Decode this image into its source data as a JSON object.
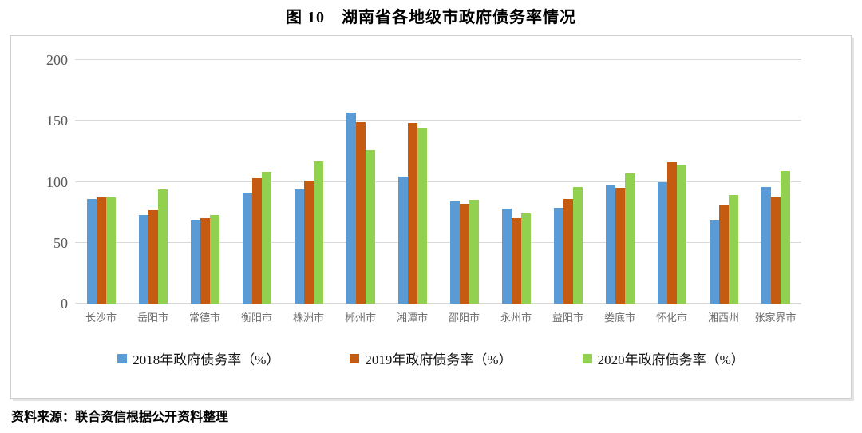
{
  "title": "图 10　湖南省各地级市政府债务率情况",
  "source_note": "资料来源：联合资信根据公开资料整理",
  "colors": {
    "series_2018": "#5B9BD5",
    "series_2019": "#C55A11",
    "series_2020": "#92D050",
    "gridline": "#d9d9d9",
    "frame_border": "#cfcfcf",
    "y_tick_label": "#595959",
    "x_tick_label": "#6f6f6f"
  },
  "chart_data": {
    "type": "bar",
    "title": "图 10　湖南省各地级市政府债务率情况",
    "categories": [
      "长沙市",
      "岳阳市",
      "常德市",
      "衡阳市",
      "株洲市",
      "郴州市",
      "湘潭市",
      "邵阳市",
      "永州市",
      "益阳市",
      "娄底市",
      "怀化市",
      "湘西州",
      "张家界市"
    ],
    "series": [
      {
        "name": "2018年政府债务率（%）",
        "color": "#5B9BD5",
        "values": [
          86,
          73,
          68,
          91,
          94,
          157,
          104,
          84,
          78,
          79,
          97,
          100,
          68,
          96
        ]
      },
      {
        "name": "2019年政府债务率（%）",
        "color": "#C55A11",
        "values": [
          87,
          77,
          70,
          103,
          101,
          149,
          148,
          82,
          70,
          86,
          95,
          116,
          81,
          87
        ]
      },
      {
        "name": "2020年政府债务率（%）",
        "color": "#92D050",
        "values": [
          87,
          94,
          73,
          108,
          117,
          126,
          144,
          85,
          74,
          96,
          107,
          114,
          89,
          109
        ]
      }
    ],
    "xlabel": "",
    "ylabel": "",
    "ylim": [
      0,
      200
    ],
    "yticks": [
      0,
      50,
      100,
      150,
      200
    ],
    "grid": true,
    "legend_position": "bottom"
  }
}
